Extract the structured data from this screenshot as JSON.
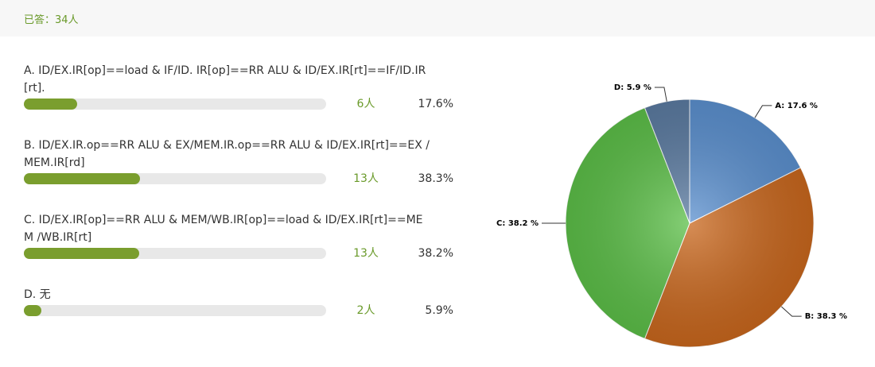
{
  "header": {
    "answered": "已答：34人"
  },
  "options": [
    {
      "label": "A. ID/EX.IR[op]==load & IF/ID. IR[op]==RR ALU & ID/EX.IR[rt]==IF/ID.IR[rt].",
      "count": "6人",
      "percent": 17.6,
      "percent_label": "17.6%"
    },
    {
      "label": "B. ID/EX.IR.op==RR ALU & EX/MEM.IR.op==RR ALU & ID/EX.IR[rt]==EX /MEM.IR[rd]",
      "count": "13人",
      "percent": 38.3,
      "percent_label": "38.3%"
    },
    {
      "label": "C. ID/EX.IR[op]==RR ALU & MEM/WB.IR[op]==load & ID/EX.IR[rt]==MEM /WB.IR[rt]",
      "count": "13人",
      "percent": 38.2,
      "percent_label": "38.2%"
    },
    {
      "label": "D. 无",
      "count": "2人",
      "percent": 5.9,
      "percent_label": "5.9%"
    }
  ],
  "chart_data": {
    "type": "pie",
    "values": [
      17.6,
      38.3,
      38.2,
      5.9
    ],
    "value_labels": [
      "A: 17.6 %",
      "B: 38.3 %",
      "C: 38.2 %",
      "D: 5.9 %"
    ],
    "colors": [
      "#5b90cf",
      "#c9671d",
      "#5cbf48",
      "#5b7ba1"
    ]
  }
}
